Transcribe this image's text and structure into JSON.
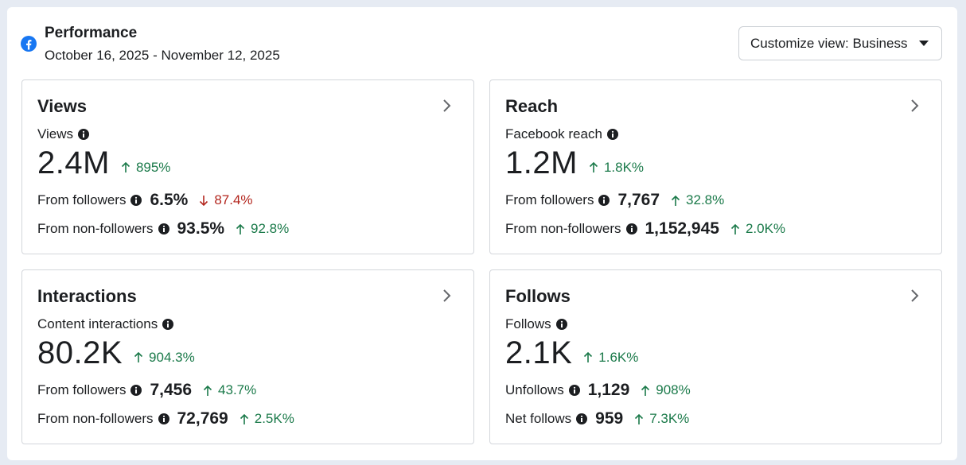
{
  "header": {
    "title": "Performance",
    "date_range": "October 16, 2025 - November 12, 2025",
    "customize_label": "Customize view: Business"
  },
  "colors": {
    "up": "#1b7a4a",
    "down": "#b3261e",
    "brand": "#1877f2"
  },
  "cards": [
    {
      "title": "Views",
      "metric_label": "Views",
      "value": "2.4M",
      "delta": "895%",
      "delta_dir": "up",
      "rows": [
        {
          "label": "From followers",
          "value": "6.5%",
          "delta": "87.4%",
          "delta_dir": "down"
        },
        {
          "label": "From non-followers",
          "value": "93.5%",
          "delta": "92.8%",
          "delta_dir": "up"
        }
      ]
    },
    {
      "title": "Reach",
      "metric_label": "Facebook reach",
      "value": "1.2M",
      "delta": "1.8K%",
      "delta_dir": "up",
      "rows": [
        {
          "label": "From followers",
          "value": "7,767",
          "delta": "32.8%",
          "delta_dir": "up"
        },
        {
          "label": "From non-followers",
          "value": "1,152,945",
          "delta": "2.0K%",
          "delta_dir": "up"
        }
      ]
    },
    {
      "title": "Interactions",
      "metric_label": "Content interactions",
      "value": "80.2K",
      "delta": "904.3%",
      "delta_dir": "up",
      "rows": [
        {
          "label": "From followers",
          "value": "7,456",
          "delta": "43.7%",
          "delta_dir": "up"
        },
        {
          "label": "From non-followers",
          "value": "72,769",
          "delta": "2.5K%",
          "delta_dir": "up"
        }
      ]
    },
    {
      "title": "Follows",
      "metric_label": "Follows",
      "value": "2.1K",
      "delta": "1.6K%",
      "delta_dir": "up",
      "rows": [
        {
          "label": "Unfollows",
          "value": "1,129",
          "delta": "908%",
          "delta_dir": "up"
        },
        {
          "label": "Net follows",
          "value": "959",
          "delta": "7.3K%",
          "delta_dir": "up"
        }
      ]
    }
  ]
}
